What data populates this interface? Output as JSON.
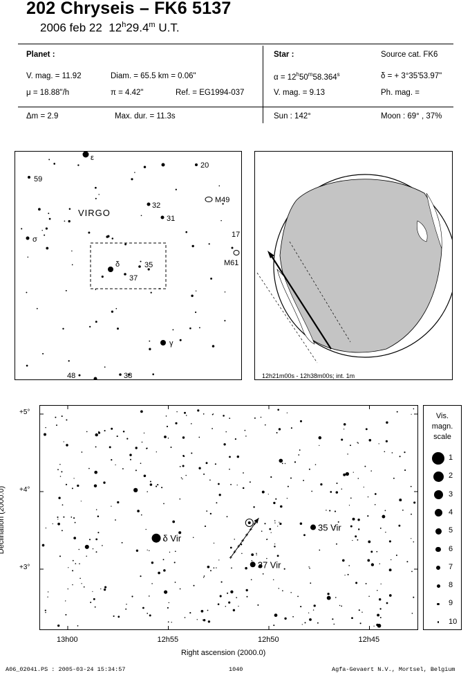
{
  "header": {
    "title": "202 Chryseis  –  FK6 5137",
    "date": "2006 feb 22",
    "time_h": "12",
    "time_h_unit": "h",
    "time_m": "29.4",
    "time_m_unit": "m",
    "time_zone": "U.T."
  },
  "planet": {
    "heading": "Planet :",
    "vmag": "V. mag. = 11.92",
    "diam": "Diam. = 65.5 km = 0.06\"",
    "mu": "μ =  18.88\"/h",
    "pi": "π =  4.42\"",
    "ref": "Ref. = EG1994-037"
  },
  "star": {
    "heading": "Star :",
    "source": "Source cat.  FK6",
    "alpha_prefix": "α = 12",
    "alpha_h": "h",
    "alpha_mid": "50",
    "alpha_m": "m",
    "alpha_sec": "58.364",
    "alpha_s": "s",
    "delta": "δ = + 3°35'53.97\"",
    "vmag": "V. mag. =  9.13",
    "phmag": "Ph. mag. ="
  },
  "summary": {
    "dm": "Δm = 2.9",
    "maxdur": "Max. dur. = 11.3s",
    "sun": "Sun : 142°",
    "moon": "Moon :  69° , 37%"
  },
  "finder": {
    "constellation": "VIRGO",
    "labels": [
      {
        "text": "ε"
      },
      {
        "text": "20"
      },
      {
        "text": "59"
      },
      {
        "text": "32"
      },
      {
        "text": "M49"
      },
      {
        "text": "31"
      },
      {
        "text": "17"
      },
      {
        "text": "σ"
      },
      {
        "text": "M61"
      },
      {
        "text": "δ"
      },
      {
        "text": "35"
      },
      {
        "text": "37"
      },
      {
        "text": "γ"
      },
      {
        "text": "48"
      },
      {
        "text": "38"
      }
    ]
  },
  "globe": {
    "caption": "12h21m00s - 12h38m00s; int.  1m"
  },
  "chart_data": {
    "type": "scatter",
    "x_tick_labels": [
      "13h00",
      "12h55",
      "12h50",
      "12h45"
    ],
    "y_tick_labels": [
      "+5°",
      "+4°",
      "+3°"
    ],
    "xlabel": "Right ascension (2000.0)",
    "ylabel": "Declination (2000.0)",
    "named_stars": [
      {
        "label": "δ Vir",
        "ra_min": 55.6,
        "dec": 3.4
      },
      {
        "label": "35 Vir",
        "ra_min": 47.8,
        "dec": 3.54
      },
      {
        "label": "37 Vir",
        "ra_min": 50.8,
        "dec": 3.06
      }
    ],
    "asteroid_track": {
      "ra_start_min": 51.9,
      "dec_start": 3.15,
      "ra_end_min": 50.5,
      "dec_end": 3.66
    },
    "target_star": {
      "ra_min": 50.97,
      "dec": 3.598
    },
    "magnitude_scale": {
      "title": [
        "Vis.",
        "magn.",
        "scale"
      ],
      "magnitudes": [
        "1",
        "2",
        "3",
        "4",
        "5",
        "6",
        "7",
        "8",
        "9",
        "10"
      ]
    }
  },
  "footer": {
    "file": "A06_02041.PS : 2005-03-24 15:34:57",
    "page": "1040",
    "credit": "Agfa-Gevaert N.V., Mortsel, Belgium"
  }
}
